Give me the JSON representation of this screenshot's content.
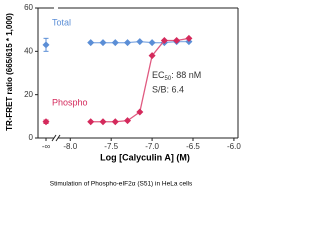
{
  "chart_data": {
    "type": "line",
    "caption": "Stimulation of Phospho-eIF2α (S51) in HeLa cells",
    "x_label": "Log [Calyculin A] (M)",
    "y_label": "TR-FRET ratio (665/615 * 1,000)",
    "x": [
      -7.75,
      -7.6,
      -7.45,
      -7.3,
      -7.15,
      -7.0,
      -6.85,
      -6.7,
      -6.55
    ],
    "xlim": [
      -8.15,
      -5.95
    ],
    "xticks": [
      {
        "value": -8,
        "label": "-8.0"
      },
      {
        "value": -7.5,
        "label": "-7.5"
      },
      {
        "value": -7,
        "label": "-7.0"
      },
      {
        "value": -6.5,
        "label": "-6.5"
      },
      {
        "value": -6,
        "label": "-6.0"
      }
    ],
    "baseline_tick": "-∞",
    "ylim": [
      0,
      60
    ],
    "yticks": [
      0,
      20,
      40,
      60
    ],
    "series": [
      {
        "name": "Total",
        "color": "#5b8ed6",
        "line_color": "#8fb3e6",
        "baseline": 43,
        "baseline_error": 3,
        "values": [
          44,
          44,
          44,
          44,
          44.5,
          44,
          44,
          44.5,
          44.5
        ]
      },
      {
        "name": "Phospho",
        "color": "#d42a5c",
        "line_color": "#e05a80",
        "baseline": 7.5,
        "baseline_error": 0.8,
        "values": [
          7.5,
          7.5,
          7.5,
          8,
          12,
          38,
          45,
          45,
          46
        ]
      }
    ],
    "annotation": {
      "ec50_text": "EC",
      "ec50_sub": "50",
      "ec50_value": ": 88 nM",
      "sb": "S/B: 6.4"
    }
  }
}
